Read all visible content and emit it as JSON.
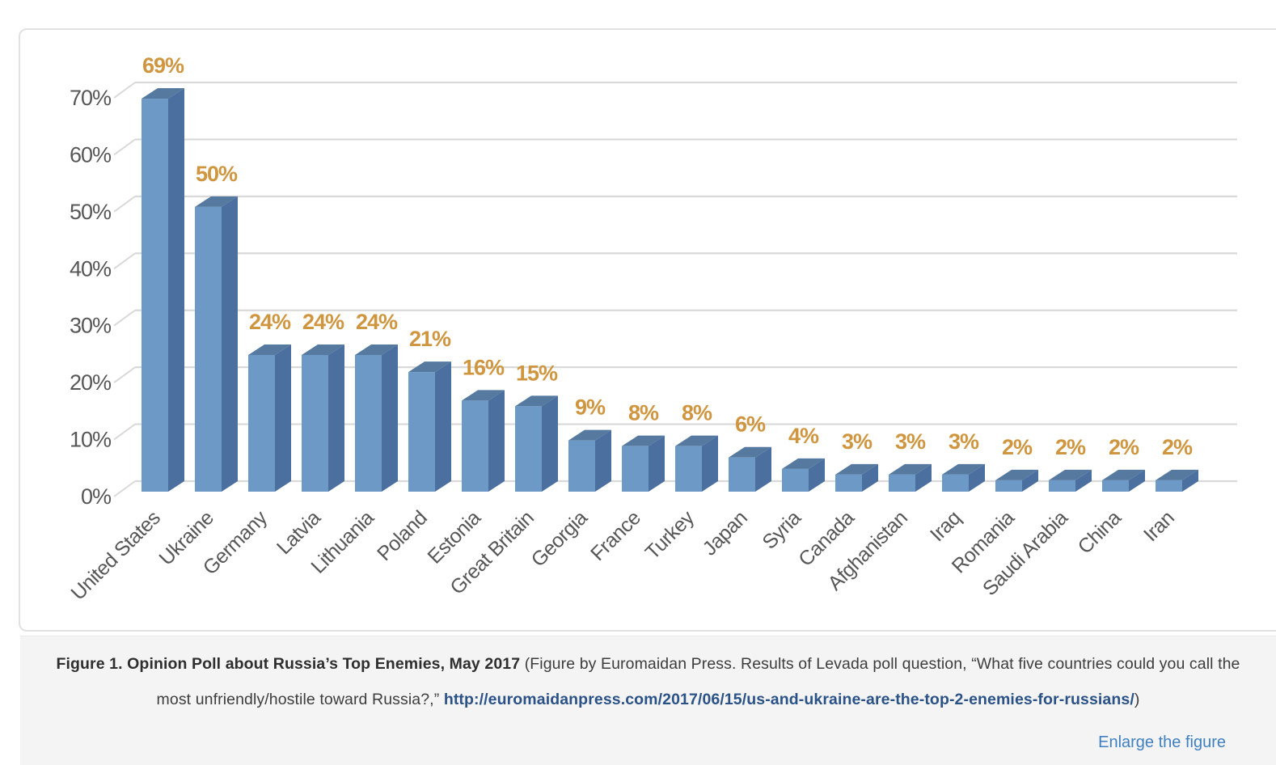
{
  "chart_data": {
    "type": "bar",
    "title": "Opinion Poll about Russia's Top Enemies, May 2017",
    "categories": [
      "United States",
      "Ukraine",
      "Germany",
      "Latvia",
      "Lithuania",
      "Poland",
      "Estonia",
      "Great Britain",
      "Georgia",
      "France",
      "Turkey",
      "Japan",
      "Syria",
      "Canada",
      "Afghanistan",
      "Iraq",
      "Romania",
      "Saudi Arabia",
      "China",
      "Iran"
    ],
    "values": [
      69,
      50,
      24,
      24,
      24,
      21,
      16,
      15,
      9,
      8,
      8,
      6,
      4,
      3,
      3,
      3,
      2,
      2,
      2,
      2
    ],
    "label_suffix": "%",
    "xlabel": "",
    "ylabel": "",
    "ylim": [
      0,
      70
    ],
    "ytick_step": 10,
    "yticks": [
      "0%",
      "10%",
      "20%",
      "30%",
      "40%",
      "50%",
      "60%",
      "70%"
    ],
    "grid": true,
    "legend": "none",
    "style": {
      "bar_front": "#6d99c7",
      "bar_top": "#55799f",
      "bar_side": "#4b70a0",
      "value_label_color": "#d0953f",
      "axis_text_color": "#575757",
      "grid_color": "#d9d9d9"
    }
  },
  "caption": {
    "bold_lead": "Figure 1. Opinion Poll about Russia’s Top Enemies, May 2017",
    "text_before_link": " (Figure by Euromaidan Press. Results of Levada poll question, “What five countries could you call the most unfriendly/hostile toward Russia?,” ",
    "link_text": "http://euromaidanpress.com/2017/06/15/us-and-ukraine-are-the-top-2-enemies-for-russians/",
    "text_after_link": ")",
    "link_color": "#2a5286",
    "enlarge_label": "Enlarge the figure",
    "enlarge_color": "#4080c0"
  }
}
